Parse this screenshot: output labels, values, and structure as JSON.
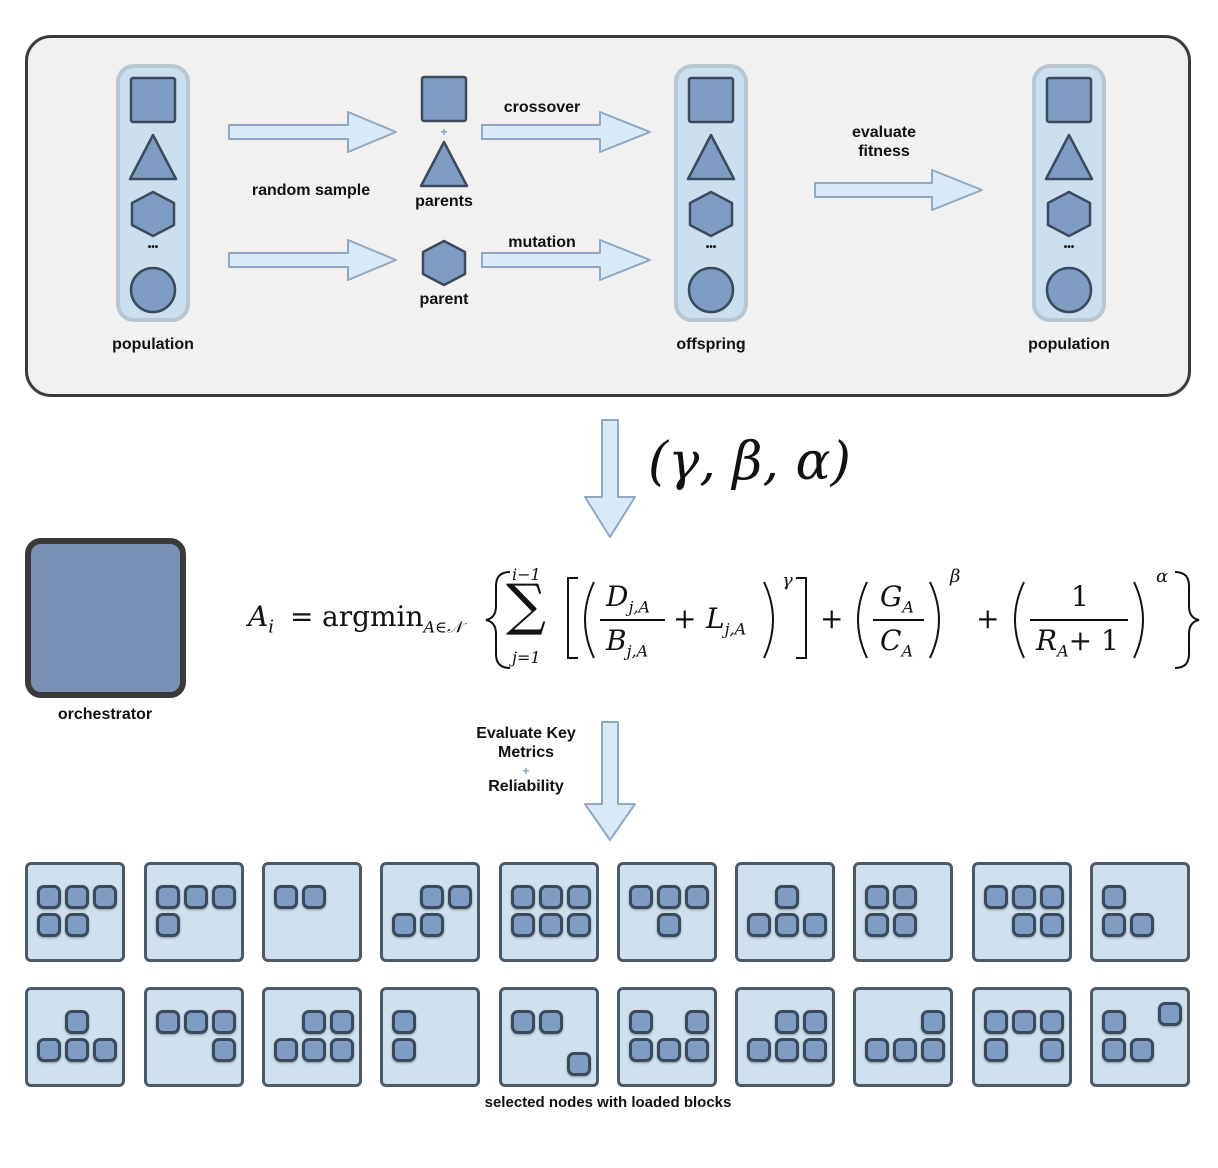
{
  "ga_panel": {
    "population_left_label": "population",
    "random_sample_label": "random sample",
    "parents_label": "parents",
    "parent_label": "parent",
    "crossover_label": "crossover",
    "mutation_label": "mutation",
    "offspring_label": "offspring",
    "evaluate_label_line1": "evaluate",
    "evaluate_label_line2": "fitness",
    "population_right_label": "population",
    "ellipsis": "•••",
    "plus_sign": "+"
  },
  "params_label": "(γ, β, α)",
  "orchestrator_label": "orchestrator",
  "formula": {
    "lhs": "A",
    "lhs_sub": "i",
    "eq": "=",
    "argmin": "argmin",
    "argmin_sub": "A∈𝒩",
    "sum_top": "i−1",
    "sum_bottom": "j=1",
    "D": "D",
    "D_sub": "j,A",
    "B": "B",
    "B_sub": "j,A",
    "plus": "+",
    "L": "L",
    "L_sub": "j,A",
    "gamma": "γ",
    "G": "G",
    "G_sub": "A",
    "C": "C",
    "C_sub": "A",
    "beta": "β",
    "one": "1",
    "R": "R",
    "R_sub": "A",
    "plus_one": "+ 1",
    "alpha": "α"
  },
  "evaluate_metrics": {
    "line1": "Evaluate Key",
    "line2": "Metrics",
    "plus": "+",
    "line3": "Reliability"
  },
  "nodes_label": "selected nodes with loaded blocks",
  "colors": {
    "shape_fill": "#7f9cc3",
    "shape_stroke": "#3b4a5e",
    "arrow_fill": "#dae9f6",
    "arrow_stroke": "#8fa9c2",
    "column_fill": "#ccdfee",
    "node_fill": "#cfe1ee",
    "gear_stroke": "#1a2a7c"
  }
}
